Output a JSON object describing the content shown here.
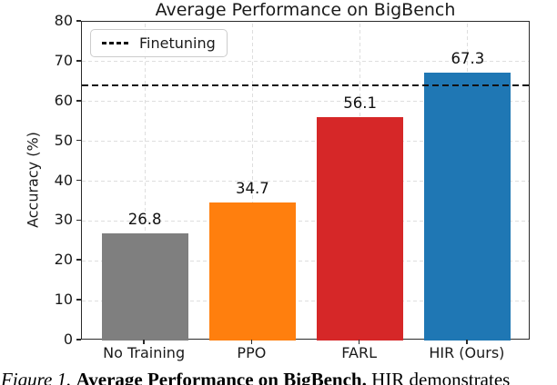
{
  "chart_data": {
    "type": "bar",
    "title": "Average Performance on BigBench",
    "xlabel": "",
    "ylabel": "Accuracy (%)",
    "categories": [
      "No Training",
      "PPO",
      "FARL",
      "HIR (Ours)"
    ],
    "values": [
      26.8,
      34.7,
      56.1,
      67.3
    ],
    "value_labels": [
      "26.8",
      "34.7",
      "56.1",
      "67.3"
    ],
    "bar_colors": [
      "#7f7f7f",
      "#ff7f0e",
      "#d62728",
      "#1f77b4"
    ],
    "ylim": [
      0,
      80
    ],
    "yticks": [
      0,
      10,
      20,
      30,
      40,
      50,
      60,
      70,
      80
    ],
    "grid": "light dashed horizontal lines at y ticks and vertical lines at category centers",
    "legend": {
      "position": "upper left",
      "entries": [
        {
          "label": "Finetuning",
          "marker": "black dashed line"
        }
      ]
    },
    "reference_line": {
      "label": "Finetuning",
      "value": 64,
      "color": "#111111",
      "style": "dashed"
    }
  },
  "caption": {
    "figure_label": "Figure 1.",
    "bold_text": "Average Performance on BigBench.",
    "trailing_text": "HIR demonstrates"
  }
}
